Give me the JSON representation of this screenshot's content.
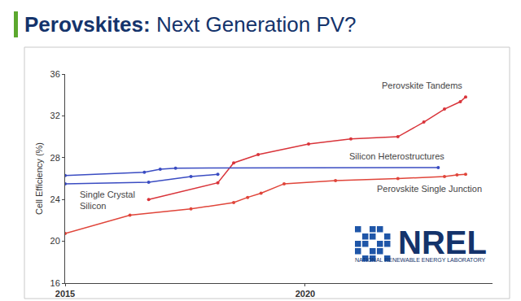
{
  "chart_data": {
    "type": "line",
    "title": "Perovskites: Next Generation PV?",
    "y_label": "Cell Efficiency (%)",
    "xlim": [
      2015,
      2023.9
    ],
    "xticks": [
      2015,
      2020
    ],
    "ylim": [
      16,
      36
    ],
    "yticks": [
      16,
      20,
      24,
      28,
      32,
      36
    ],
    "grid": false,
    "marker": "circle",
    "line_style": "solid",
    "annotations": [
      "NREL",
      "NATIONAL RENEWABLE ENERGY LABORATORY"
    ],
    "series": [
      {
        "name": "Perovskite Tandems",
        "color": "#d9343a",
        "x": [
          2016.74,
          2018.18,
          2018.51,
          2019.02,
          2020.07,
          2020.95,
          2021.93,
          2022.47,
          2022.9,
          2023.23,
          2023.34
        ],
        "values": [
          24.0,
          25.6,
          27.5,
          28.3,
          29.3,
          29.8,
          30.0,
          31.4,
          32.65,
          33.35,
          33.8
        ]
      },
      {
        "name": "Silicon Heterostructures",
        "color": "#3a4cc2",
        "x": [
          2015,
          2016.65,
          2016.98,
          2017.3,
          2022.77
        ],
        "values": [
          26.3,
          26.6,
          26.9,
          27.0,
          27.05
        ]
      },
      {
        "name": "Single Crystal Silicon",
        "color": "#3a4cc2",
        "x": [
          2015,
          2016.74,
          2017.62,
          2018.18
        ],
        "values": [
          25.5,
          25.65,
          26.2,
          26.4
        ]
      },
      {
        "name": "Perovskite Single Junction",
        "color": "#e0453a",
        "x": [
          2015,
          2016.35,
          2017.62,
          2018.51,
          2018.8,
          2019.08,
          2019.56,
          2020.63,
          2021.93,
          2022.9,
          2023.16,
          2023.34
        ],
        "values": [
          20.75,
          22.5,
          23.1,
          23.7,
          24.2,
          24.6,
          25.5,
          25.8,
          26.0,
          26.2,
          26.35,
          26.4
        ]
      }
    ]
  }
}
